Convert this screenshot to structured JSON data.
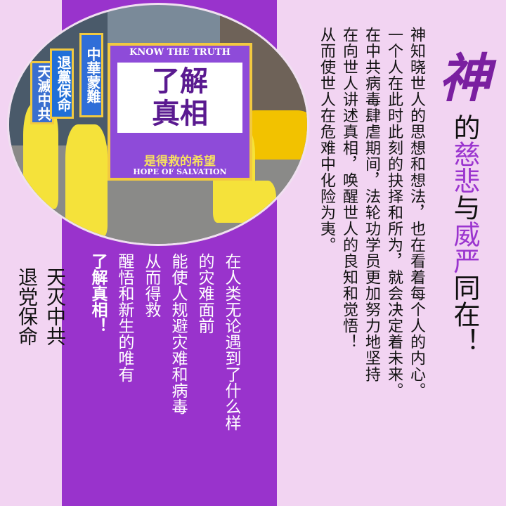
{
  "photo": {
    "big_banner_top": "KNOW THE TRUTH",
    "big_banner_line1": "了解",
    "big_banner_line2": "真相",
    "big_banner_sub": "是得救的希望",
    "big_banner_bottom": "HOPE OF SALVATION",
    "side_banner_1": "中華蒙難",
    "side_banner_2": "退黨保命",
    "side_banner_3": "天滅中共"
  },
  "title": {
    "char_1": "神",
    "char_2": "的",
    "char_3": "慈悲",
    "char_4": "与",
    "char_5": "威严",
    "char_6": "同在！"
  },
  "right_text": {
    "col_1": "神知晓世人的思想和想法，也在看着每个人的内心。",
    "col_2": "一个人在此时此刻的抉择和所为，就会决定着未来。",
    "col_3": "在中共病毒肆虐期间，法轮功学员更加努力地坚持",
    "col_4": "在向世人讲述真相，唤醒世人的良知和觉悟！",
    "col_5": "从而使世人在危难中化险为夷。"
  },
  "mid_text": {
    "col_1": "在人类无论遇到了什么样",
    "col_2": "的灾难面前",
    "col_3": "能使人规避灾难和病毒",
    "col_4": "从而得救",
    "col_5": "醒悟和新生的唯有",
    "col_6": "了解真相！"
  },
  "left_text": {
    "col_1": "天灭中共",
    "col_2": "退党保命"
  },
  "colors": {
    "background": "#f2d4f2",
    "band": "#9933cc",
    "accent": "#9b35cf"
  }
}
